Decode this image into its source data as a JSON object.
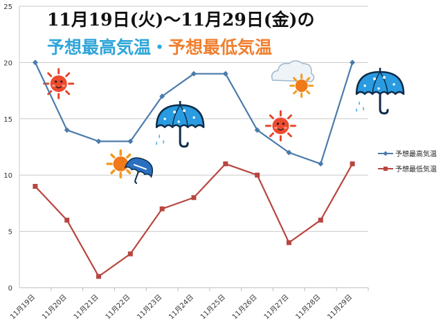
{
  "header": {
    "line1": "11月19日(火)～11月29日(金)の",
    "line2_high": "予想最高気温",
    "line2_sep": "・",
    "line2_low": "予想最低気温",
    "high_color": "#2fa5d9",
    "sep_color": "#2fa5d9",
    "low_color": "#f08030"
  },
  "chart_data": {
    "type": "line",
    "categories": [
      "11月19日",
      "11月20日",
      "11月21日",
      "11月22日",
      "11月23日",
      "11月24日",
      "11月25日",
      "11月26日",
      "11月27日",
      "11月28日",
      "11月29日"
    ],
    "series": [
      {
        "name": "予想最高気温",
        "values": [
          20,
          14,
          13,
          13,
          17,
          19,
          19,
          14,
          12,
          11,
          20
        ],
        "color": "#4a7bab",
        "marker": "diamond"
      },
      {
        "name": "予想最低気温",
        "values": [
          9,
          6,
          1,
          3,
          7,
          8,
          11,
          10,
          4,
          6,
          11
        ],
        "color": "#b8453f",
        "marker": "square"
      }
    ],
    "yticks": [
      0,
      5,
      10,
      15,
      20,
      25
    ],
    "ylim": [
      0,
      25
    ],
    "grid": true,
    "legend_position": "right"
  },
  "weather_icons": [
    {
      "category": "11月20日",
      "icon": "sun-icon"
    },
    {
      "category": "11月22日",
      "icon": "sun-umbrella-icon"
    },
    {
      "category": "11月23日",
      "icon": "umbrella-rain-icon"
    },
    {
      "category": "11月26日",
      "icon": "cloud-sun-icon"
    },
    {
      "category": "11月27日",
      "icon": "sun-icon"
    },
    {
      "category": "11月29日",
      "icon": "umbrella-rain-icon"
    }
  ]
}
